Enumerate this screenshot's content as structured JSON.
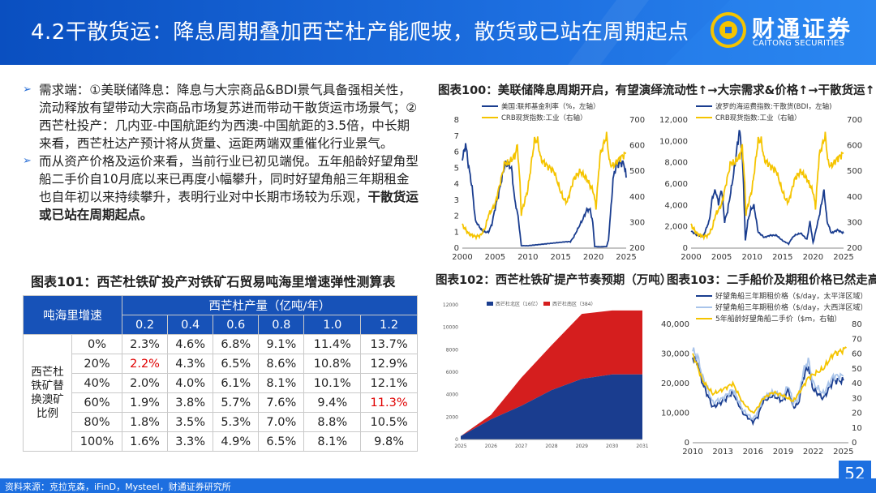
{
  "header": {
    "title": "4.2干散货运：降息周期叠加西芒杜产能爬坡，散货或已站在周期起点"
  },
  "logo": {
    "name": "财通证券",
    "english": "CAITONG SECURITIES"
  },
  "bullets": [
    {
      "text": "需求端：①美联储降息：降息与大宗商品&BDI景气具备强相关性，流动释放有望带动大宗商品市场复苏进而带动干散货运市场景气；②西芒杜投产：几内亚-中国航距约为西澳-中国航距的3.5倍，中长期来看，西芒杜达产预计将从货量、运距两端双重催化行业景气。",
      "bold": ""
    },
    {
      "text": "而从资产价格及运价来看，当前行业已初见端倪。五年船龄好望角型船二手价自10月底以来已再度小幅攀升，同时好望角船三年期租金也自年初以来持续攀升，表明行业对中长期市场较为乐观，",
      "bold": "干散货运或已站在周期起点。"
    }
  ],
  "titles": {
    "c100": "图表100：美联储降息周期开启，有望演绎流动性↑→大宗需求&价格↑→干散货运↑",
    "t101": "图表101：西芒杜铁矿投产对铁矿石贸易吨海里增速弹性测算表",
    "c102": "图表102：西芒杜铁矿提产节奏预期（万吨）",
    "c103": "图表103：二手船价及期租价格已然走高"
  },
  "table101": {
    "corner": "吨海里增速",
    "col_group": "西芒杜产量（亿吨/年）",
    "cols": [
      "0.2",
      "0.4",
      "0.6",
      "0.8",
      "1.0",
      "1.2"
    ],
    "row_group": "西芒杜铁矿替换澳矿比例",
    "rows": [
      {
        "label": "0%",
        "values": [
          "2.3%",
          "4.6%",
          "6.8%",
          "9.1%",
          "11.4%",
          "13.7%"
        ]
      },
      {
        "label": "20%",
        "values": [
          "2.2%",
          "4.3%",
          "6.5%",
          "8.6%",
          "10.8%",
          "12.9%"
        ]
      },
      {
        "label": "40%",
        "values": [
          "2.0%",
          "4.0%",
          "6.1%",
          "8.1%",
          "10.1%",
          "12.1%"
        ]
      },
      {
        "label": "60%",
        "values": [
          "1.9%",
          "3.8%",
          "5.7%",
          "7.6%",
          "9.4%",
          "11.3%"
        ]
      },
      {
        "label": "80%",
        "values": [
          "1.8%",
          "3.5%",
          "5.3%",
          "7.0%",
          "8.8%",
          "10.5%"
        ]
      },
      {
        "label": "100%",
        "values": [
          "1.6%",
          "3.3%",
          "4.9%",
          "6.5%",
          "8.1%",
          "9.8%"
        ]
      }
    ],
    "highlight_color": "#e00000"
  },
  "chart_data": [
    {
      "id": "c100a",
      "type": "line",
      "xlim": [
        2000,
        2025
      ],
      "xticks": [
        "2000",
        "2005",
        "2010",
        "2015",
        "2020",
        "2025"
      ],
      "ylim": [
        0,
        8
      ],
      "yticks": [
        "0",
        "1",
        "2",
        "3",
        "4",
        "5",
        "6",
        "7",
        "8"
      ],
      "y2lim": [
        200,
        700
      ],
      "y2ticks": [
        "200",
        "300",
        "400",
        "500",
        "600",
        "700"
      ],
      "series": [
        {
          "name": "美国:联邦基金利率（%，左轴）",
          "axis": "left",
          "color": "#1a3d8f",
          "x": [
            2000,
            2000.5,
            2001,
            2001.5,
            2002,
            2003,
            2003.5,
            2004,
            2004.5,
            2005,
            2005.5,
            2006,
            2006.5,
            2007,
            2007.5,
            2008,
            2008.5,
            2009,
            2010,
            2015.9,
            2016.5,
            2017,
            2017.5,
            2018,
            2018.5,
            2019,
            2019.5,
            2019.9,
            2020.2,
            2021,
            2022,
            2022.3,
            2022.5,
            2022.8,
            2023,
            2023.5,
            2024,
            2024.6,
            2024.8,
            2025
          ],
          "y": [
            5.5,
            6.5,
            5,
            3.8,
            1.7,
            1.1,
            1,
            1,
            1.5,
            2.5,
            3.3,
            4.3,
            5.2,
            5.2,
            5,
            3,
            2,
            0.15,
            0.15,
            0.4,
            0.4,
            0.7,
            1.1,
            1.5,
            1.9,
            2.4,
            2.4,
            1.6,
            0.1,
            0.08,
            0.1,
            0.5,
            1.6,
            3.1,
            4.3,
            5.2,
            5.3,
            5.3,
            5,
            4.4
          ]
        },
        {
          "name": "CRB现货指数:工业（右轴）",
          "axis": "right",
          "color": "#f5c400",
          "x": [
            2000,
            2001,
            2002,
            2002.8,
            2003.5,
            2004,
            2005,
            2006,
            2006.5,
            2007,
            2008,
            2008.4,
            2008.8,
            2009,
            2010,
            2011,
            2011.5,
            2012,
            2013,
            2014,
            2015,
            2015.5,
            2016,
            2017,
            2018,
            2019,
            2020,
            2020.4,
            2021,
            2021.5,
            2022,
            2022.5,
            2023,
            2024,
            2025
          ],
          "y": [
            290,
            255,
            245,
            250,
            280,
            330,
            370,
            480,
            535,
            530,
            560,
            600,
            450,
            335,
            430,
            620,
            620,
            545,
            520,
            500,
            420,
            390,
            380,
            470,
            500,
            470,
            420,
            360,
            560,
            600,
            640,
            530,
            520,
            550,
            570
          ]
        }
      ]
    },
    {
      "id": "c100b",
      "type": "line",
      "xlim": [
        2000,
        2025
      ],
      "xticks": [
        "2000",
        "2005",
        "2010",
        "2015",
        "2020",
        "2025"
      ],
      "ylim": [
        0,
        12000
      ],
      "yticks": [
        "0",
        "2,000",
        "4,000",
        "6,000",
        "8,000",
        "10,000",
        "12,000"
      ],
      "y2lim": [
        200,
        700
      ],
      "y2ticks": [
        "200",
        "300",
        "400",
        "500",
        "600",
        "700"
      ],
      "series": [
        {
          "name": "波罗的海运费指数:干散货(BDI，左轴)",
          "axis": "left",
          "color": "#1a3d8f",
          "x": [
            2000,
            2001,
            2002,
            2003,
            2003.5,
            2004,
            2004.5,
            2005,
            2005.5,
            2006,
            2007,
            2007.5,
            2007.9,
            2008.3,
            2008.6,
            2008.9,
            2009.3,
            2009.8,
            2010.3,
            2011,
            2012,
            2013,
            2014,
            2015,
            2016,
            2016.5,
            2017,
            2018,
            2019,
            2019.5,
            2020,
            2021,
            2021.8,
            2022.3,
            2023,
            2024,
            2025
          ],
          "y": [
            1600,
            1200,
            1100,
            2600,
            4800,
            5400,
            4200,
            5500,
            2500,
            3500,
            7000,
            9200,
            11000,
            9500,
            6000,
            700,
            2500,
            3600,
            4000,
            1500,
            1000,
            1200,
            1200,
            700,
            400,
            900,
            1200,
            1400,
            800,
            2500,
            500,
            3000,
            5400,
            2500,
            1400,
            1700,
            1400
          ]
        },
        {
          "name": "CRB现货指数:工业（右轴）",
          "axis": "right",
          "color": "#f5c400",
          "x": [
            2000,
            2001,
            2002,
            2002.8,
            2003.5,
            2004,
            2005,
            2006,
            2006.5,
            2007,
            2008,
            2008.4,
            2008.8,
            2009,
            2010,
            2011,
            2011.5,
            2012,
            2013,
            2014,
            2015,
            2015.5,
            2016,
            2017,
            2018,
            2019,
            2020,
            2020.4,
            2021,
            2021.5,
            2022,
            2022.5,
            2023,
            2024,
            2025
          ],
          "y": [
            290,
            255,
            245,
            250,
            280,
            330,
            370,
            480,
            535,
            530,
            560,
            600,
            450,
            335,
            430,
            620,
            620,
            545,
            520,
            500,
            420,
            390,
            380,
            470,
            500,
            470,
            420,
            360,
            560,
            600,
            640,
            530,
            520,
            550,
            570
          ]
        }
      ]
    },
    {
      "id": "c102",
      "type": "area",
      "xlim": [
        2025,
        2031
      ],
      "xticks": [
        "2025",
        "2026",
        "2027",
        "2028",
        "2029",
        "2030",
        "2031"
      ],
      "ylim": [
        0,
        12000
      ],
      "yticks": [
        "0",
        "2000",
        "4000",
        "6000",
        "8000",
        "10000",
        "12000"
      ],
      "series": [
        {
          "name": "西芒杜北区（16亿）",
          "color": "#1a3d8f",
          "x": [
            2025,
            2026,
            2027,
            2028,
            2029,
            2030,
            2031
          ],
          "y": [
            300,
            1800,
            3000,
            4400,
            5400,
            5800,
            5800
          ]
        },
        {
          "name": "西芒杜南区（384）",
          "color": "#d51e1e",
          "x": [
            2025,
            2026,
            2027,
            2028,
            2029,
            2030,
            2031
          ],
          "y": [
            0,
            400,
            2500,
            4000,
            5800,
            5700,
            5700
          ]
        }
      ]
    },
    {
      "id": "c103",
      "type": "line",
      "xlim": [
        2010,
        2025.5
      ],
      "xticks": [
        "2010",
        "2013",
        "2016",
        "2019",
        "2022",
        "2025"
      ],
      "ylim": [
        0,
        40000
      ],
      "yticks": [
        "0",
        "10,000",
        "20,000",
        "30,000",
        "40,000"
      ],
      "y2lim": [
        0,
        80
      ],
      "y2ticks": [
        "0",
        "10",
        "20",
        "30",
        "40",
        "50",
        "60",
        "70",
        "80"
      ],
      "series": [
        {
          "name": "好望角船三年期租价格（$/day，太平洋区域）",
          "axis": "left",
          "color": "#1a3d8f",
          "x": [
            2010,
            2010.5,
            2011,
            2011.5,
            2012,
            2013,
            2014,
            2015,
            2016,
            2016.5,
            2017,
            2018,
            2019,
            2019.5,
            2020,
            2020.5,
            2021,
            2021.5,
            2022,
            2023,
            2024,
            2025
          ],
          "y": [
            29000,
            27000,
            20000,
            16000,
            12000,
            14000,
            17000,
            10000,
            7000,
            9000,
            14000,
            16000,
            14000,
            18000,
            12000,
            13000,
            22000,
            26000,
            18000,
            15000,
            21000,
            21000
          ]
        },
        {
          "name": "好望角船三年期租价格（$/day，大西洋区域）",
          "axis": "left",
          "color": "#a9c4ea",
          "x": [
            2010,
            2010.5,
            2011,
            2011.5,
            2012,
            2013,
            2014,
            2015,
            2016,
            2016.5,
            2017,
            2018,
            2019,
            2019.5,
            2020,
            2020.5,
            2021,
            2021.5,
            2022,
            2023,
            2024,
            2025
          ],
          "y": [
            31000,
            29000,
            22000,
            18000,
            13500,
            15000,
            18000,
            11000,
            8000,
            10500,
            15000,
            17000,
            15500,
            19500,
            13500,
            14500,
            24000,
            28000,
            20000,
            16500,
            22500,
            22500
          ]
        },
        {
          "name": "5年船龄好望角船二手价（$m，右轴）",
          "axis": "right",
          "color": "#f5c400",
          "x": [
            2010,
            2011,
            2012,
            2013,
            2014,
            2015,
            2016,
            2016.5,
            2017,
            2018,
            2019,
            2020,
            2021,
            2021.5,
            2022,
            2023,
            2024,
            2024.8,
            2025.3
          ],
          "y": [
            60,
            42,
            33,
            36,
            40,
            27,
            20,
            24,
            30,
            34,
            32,
            28,
            38,
            44,
            46,
            50,
            60,
            62,
            64
          ]
        }
      ]
    }
  ],
  "footer": "资料来源：克拉克森，iFinD，Mysteel，财通证券研究所",
  "page": "52"
}
